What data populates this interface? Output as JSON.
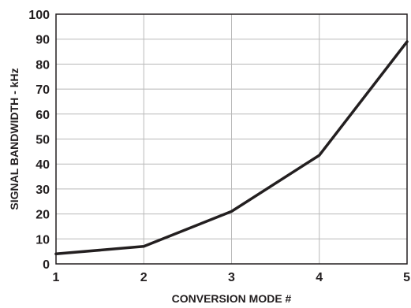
{
  "chart_data": {
    "type": "line",
    "xlabel": "CONVERSION MODE #",
    "ylabel": "SIGNAL BANDWIDTH - kHz",
    "x": [
      1,
      2,
      3,
      4,
      5
    ],
    "x_ticks": [
      "1",
      "2",
      "3",
      "4",
      "5"
    ],
    "y_ticks": [
      "0",
      "10",
      "20",
      "30",
      "40",
      "50",
      "60",
      "70",
      "80",
      "90",
      "100"
    ],
    "xlim": [
      1,
      5
    ],
    "ylim": [
      0,
      100
    ],
    "grid": true,
    "series": [
      {
        "values": [
          4,
          7,
          21,
          43.5,
          89
        ]
      }
    ],
    "colors": {
      "line": "#231f20",
      "grid": "#b9b9b9",
      "frame": "#231f20"
    }
  }
}
